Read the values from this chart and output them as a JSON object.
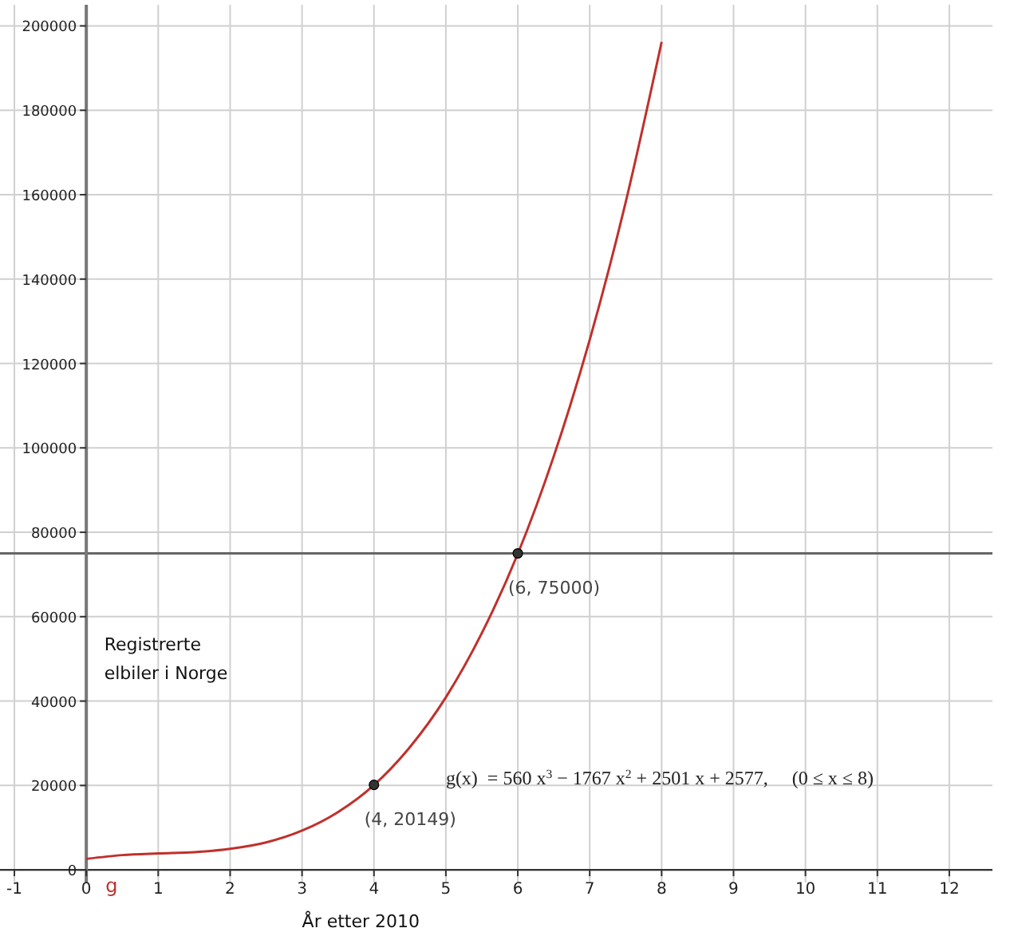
{
  "chart_data": {
    "type": "line",
    "xlabel": "År etter  2010",
    "xlim": [
      -1.2,
      12.6
    ],
    "ylim": [
      -3000,
      205000
    ],
    "xticks": [
      -1,
      0,
      1,
      2,
      3,
      4,
      5,
      6,
      7,
      8,
      9,
      10,
      11,
      12
    ],
    "yticks": [
      0,
      20000,
      40000,
      60000,
      80000,
      100000,
      120000,
      140000,
      160000,
      180000,
      200000
    ],
    "grid": true,
    "series": [
      {
        "name": "g",
        "color": "#c0302b",
        "marker": "none",
        "x": [
          0,
          0.5,
          1,
          1.5,
          2,
          2.5,
          3,
          3.5,
          4,
          4.5,
          5,
          5.5,
          6,
          6.5,
          7,
          7.5,
          8
        ],
        "values": [
          2600,
          3500,
          3900,
          4200,
          5000,
          6500,
          9300,
          13700,
          20100,
          29100,
          40900,
          56100,
          74900,
          98000,
          125600,
          158200,
          196200
        ]
      },
      {
        "type": "scatter",
        "color": "#333333",
        "marker": "circle",
        "x": [
          4,
          6
        ],
        "values": [
          20149,
          75000
        ]
      }
    ],
    "ref_lines": [
      {
        "axis": "y",
        "value": 75000,
        "color": "#666666"
      }
    ],
    "annotations": [
      {
        "text": "(4, 20149)",
        "x": 4,
        "y": 20149
      },
      {
        "text": "(6, 75000)",
        "x": 6,
        "y": 75000
      },
      "Registrerte\nelbiler i Norge",
      "g(x)  = 560 x$^{3}$ − 1767 x$^{2}$ + 2501 x + 2577,     (0 ≤ x ≤ 8)"
    ]
  }
}
